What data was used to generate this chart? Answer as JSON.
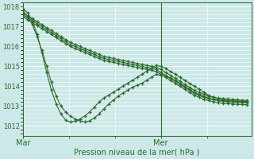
{
  "xlabel": "Pression niveau de la mer( hPa )",
  "bg_color": "#cce8e8",
  "grid_color": "#ffffff",
  "line_color": "#2d6a2d",
  "ylim": [
    1011.5,
    1018.2
  ],
  "yticks": [
    1012,
    1013,
    1014,
    1015,
    1016,
    1017,
    1018
  ],
  "xlim": [
    0,
    48
  ],
  "xtick_positions": [
    0,
    29
  ],
  "xtick_labels": [
    "Mar",
    "Mer"
  ],
  "vline_x": 29,
  "series": [
    [
      1017.7,
      1017.55,
      1017.4,
      1017.25,
      1017.1,
      1016.95,
      1016.8,
      1016.65,
      1016.5,
      1016.35,
      1016.2,
      1016.1,
      1016.0,
      1015.9,
      1015.8,
      1015.7,
      1015.6,
      1015.5,
      1015.45,
      1015.4,
      1015.35,
      1015.3,
      1015.25,
      1015.2,
      1015.15,
      1015.1,
      1015.05,
      1015.0,
      1014.95,
      1014.85,
      1014.7,
      1014.55,
      1014.4,
      1014.25,
      1014.1,
      1013.95,
      1013.8,
      1013.7,
      1013.6,
      1013.5,
      1013.45,
      1013.4,
      1013.38,
      1013.36,
      1013.34,
      1013.32,
      1013.3,
      1013.28
    ],
    [
      1017.6,
      1017.45,
      1017.3,
      1017.15,
      1017.0,
      1016.85,
      1016.7,
      1016.55,
      1016.4,
      1016.25,
      1016.1,
      1016.0,
      1015.9,
      1015.8,
      1015.7,
      1015.6,
      1015.5,
      1015.4,
      1015.35,
      1015.3,
      1015.25,
      1015.2,
      1015.15,
      1015.1,
      1015.05,
      1015.0,
      1014.95,
      1014.9,
      1014.85,
      1014.7,
      1014.55,
      1014.4,
      1014.25,
      1014.1,
      1013.95,
      1013.8,
      1013.65,
      1013.55,
      1013.45,
      1013.38,
      1013.32,
      1013.28,
      1013.25,
      1013.23,
      1013.21,
      1013.2,
      1013.18,
      1013.17
    ],
    [
      1017.5,
      1017.35,
      1017.2,
      1017.05,
      1016.9,
      1016.75,
      1016.6,
      1016.45,
      1016.3,
      1016.15,
      1016.0,
      1015.9,
      1015.8,
      1015.7,
      1015.6,
      1015.5,
      1015.4,
      1015.3,
      1015.25,
      1015.2,
      1015.15,
      1015.1,
      1015.05,
      1015.0,
      1014.95,
      1014.9,
      1014.85,
      1014.8,
      1014.75,
      1014.6,
      1014.45,
      1014.3,
      1014.15,
      1014.0,
      1013.85,
      1013.7,
      1013.55,
      1013.45,
      1013.35,
      1013.28,
      1013.22,
      1013.18,
      1013.15,
      1013.13,
      1013.11,
      1013.1,
      1013.08,
      1013.07
    ],
    [
      1017.8,
      1017.5,
      1017.1,
      1016.5,
      1015.8,
      1015.0,
      1014.2,
      1013.5,
      1013.0,
      1012.7,
      1012.5,
      1012.35,
      1012.25,
      1012.2,
      1012.25,
      1012.4,
      1012.6,
      1012.85,
      1013.1,
      1013.3,
      1013.5,
      1013.65,
      1013.8,
      1013.95,
      1014.05,
      1014.15,
      1014.3,
      1014.45,
      1014.6,
      1014.55,
      1014.5,
      1014.4,
      1014.3,
      1014.15,
      1014.0,
      1013.85,
      1013.7,
      1013.6,
      1013.5,
      1013.4,
      1013.35,
      1013.3,
      1013.28,
      1013.26,
      1013.25,
      1013.23,
      1013.22,
      1013.2
    ],
    [
      1017.9,
      1017.7,
      1017.3,
      1016.6,
      1015.7,
      1014.7,
      1013.8,
      1013.1,
      1012.6,
      1012.3,
      1012.2,
      1012.25,
      1012.35,
      1012.5,
      1012.7,
      1012.95,
      1013.2,
      1013.4,
      1013.55,
      1013.7,
      1013.85,
      1014.0,
      1014.15,
      1014.3,
      1014.45,
      1014.6,
      1014.75,
      1014.9,
      1015.05,
      1015.0,
      1014.9,
      1014.75,
      1014.6,
      1014.45,
      1014.3,
      1014.15,
      1014.0,
      1013.85,
      1013.7,
      1013.55,
      1013.45,
      1013.38,
      1013.33,
      1013.3,
      1013.28,
      1013.26,
      1013.25,
      1013.23
    ]
  ]
}
